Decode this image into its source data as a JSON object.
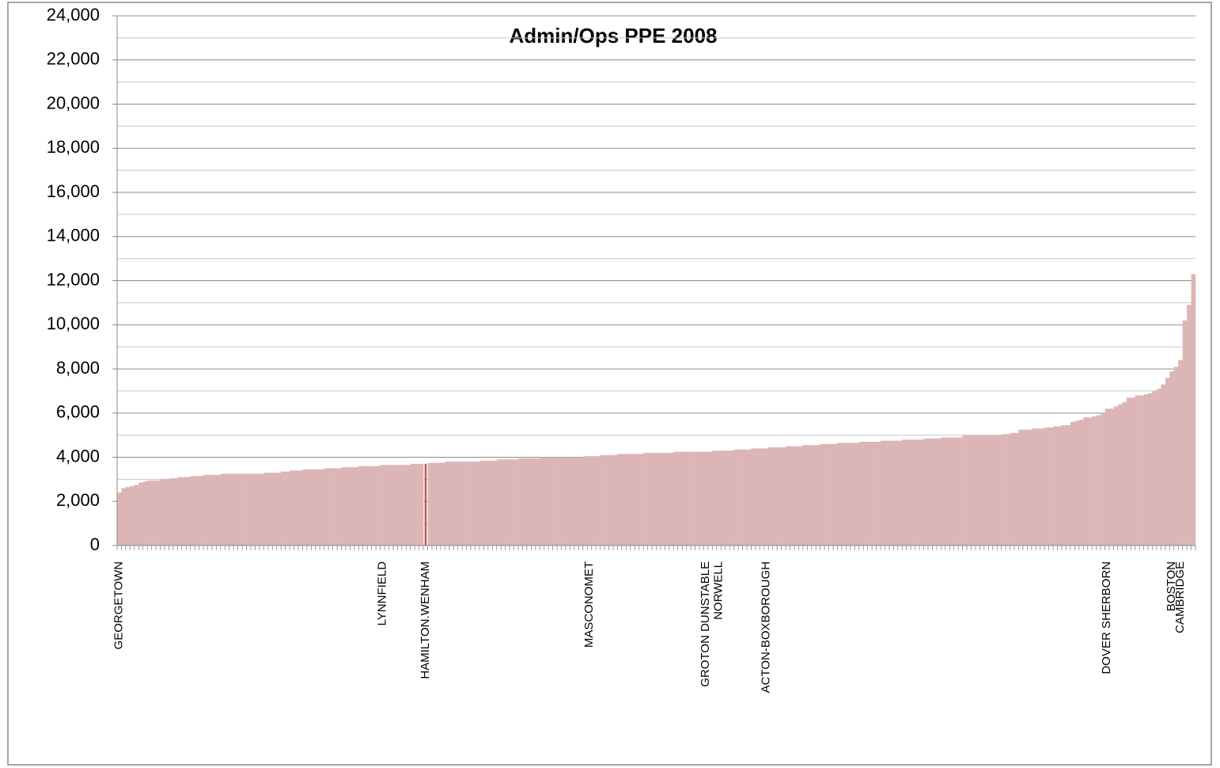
{
  "chart_data": {
    "type": "bar",
    "title": "Admin/Ops PPE 2008",
    "categories": [
      "GEORGETOWN",
      null,
      null,
      null,
      null,
      null,
      null,
      null,
      null,
      null,
      null,
      null,
      null,
      null,
      null,
      null,
      null,
      null,
      null,
      null,
      null,
      null,
      null,
      null,
      null,
      null,
      null,
      null,
      null,
      null,
      null,
      null,
      null,
      null,
      null,
      null,
      null,
      null,
      null,
      null,
      null,
      null,
      null,
      null,
      null,
      null,
      null,
      null,
      null,
      null,
      null,
      null,
      null,
      null,
      null,
      null,
      null,
      null,
      null,
      null,
      null,
      "LYNNFIELD",
      null,
      null,
      null,
      null,
      null,
      null,
      null,
      null,
      null,
      "HAMILTON.WENHAM",
      null,
      null,
      null,
      null,
      null,
      null,
      null,
      null,
      null,
      null,
      null,
      null,
      null,
      null,
      null,
      null,
      null,
      null,
      null,
      null,
      null,
      null,
      null,
      null,
      null,
      null,
      null,
      null,
      null,
      null,
      null,
      null,
      null,
      null,
      null,
      null,
      null,
      "MASCONOMET",
      null,
      null,
      null,
      null,
      null,
      null,
      null,
      null,
      null,
      null,
      null,
      null,
      null,
      null,
      null,
      null,
      null,
      null,
      null,
      null,
      null,
      null,
      null,
      null,
      null,
      null,
      "GROTON DUNSTABLE",
      null,
      null,
      "NORWELL",
      null,
      null,
      null,
      null,
      null,
      null,
      null,
      null,
      null,
      null,
      "ACTON-BOXBOROUGH",
      null,
      null,
      null,
      null,
      null,
      null,
      null,
      null,
      null,
      null,
      null,
      null,
      null,
      null,
      null,
      null,
      null,
      null,
      null,
      null,
      null,
      null,
      null,
      null,
      null,
      null,
      null,
      null,
      null,
      null,
      null,
      null,
      null,
      null,
      null,
      null,
      null,
      null,
      null,
      null,
      null,
      null,
      null,
      null,
      null,
      null,
      null,
      null,
      null,
      null,
      null,
      null,
      null,
      null,
      null,
      null,
      null,
      null,
      null,
      null,
      null,
      null,
      null,
      null,
      null,
      null,
      null,
      null,
      null,
      null,
      null,
      null,
      null,
      null,
      null,
      null,
      null,
      null,
      "DOVER SHERBORN",
      null,
      null,
      null,
      null,
      null,
      null,
      null,
      null,
      null,
      null,
      null,
      null,
      null,
      null,
      "BOSTON",
      null,
      "CAMBRIDGE",
      null,
      null,
      null
    ],
    "values": [
      2400,
      2600,
      2650,
      2700,
      2750,
      2850,
      2900,
      2950,
      2950,
      2950,
      3000,
      3000,
      3050,
      3050,
      3100,
      3100,
      3100,
      3150,
      3150,
      3150,
      3200,
      3200,
      3200,
      3200,
      3250,
      3250,
      3250,
      3250,
      3250,
      3250,
      3250,
      3250,
      3250,
      3250,
      3300,
      3300,
      3300,
      3300,
      3350,
      3350,
      3400,
      3400,
      3400,
      3450,
      3450,
      3450,
      3450,
      3450,
      3500,
      3500,
      3500,
      3500,
      3550,
      3550,
      3550,
      3550,
      3600,
      3600,
      3600,
      3600,
      3600,
      3650,
      3650,
      3650,
      3650,
      3650,
      3650,
      3650,
      3700,
      3700,
      3700,
      3700,
      3750,
      3750,
      3750,
      3750,
      3800,
      3800,
      3800,
      3800,
      3800,
      3800,
      3800,
      3800,
      3850,
      3850,
      3850,
      3850,
      3900,
      3900,
      3900,
      3900,
      3900,
      3950,
      3950,
      3950,
      3950,
      3950,
      4000,
      4000,
      4000,
      4000,
      4000,
      4000,
      4000,
      4000,
      4000,
      4000,
      4050,
      4050,
      4050,
      4050,
      4100,
      4100,
      4100,
      4100,
      4150,
      4150,
      4150,
      4150,
      4150,
      4150,
      4200,
      4200,
      4200,
      4200,
      4200,
      4200,
      4200,
      4250,
      4250,
      4250,
      4250,
      4250,
      4250,
      4250,
      4250,
      4250,
      4300,
      4300,
      4300,
      4300,
      4300,
      4350,
      4350,
      4350,
      4350,
      4400,
      4400,
      4400,
      4400,
      4450,
      4450,
      4450,
      4450,
      4500,
      4500,
      4500,
      4500,
      4550,
      4550,
      4550,
      4550,
      4600,
      4600,
      4600,
      4600,
      4650,
      4650,
      4650,
      4650,
      4650,
      4700,
      4700,
      4700,
      4700,
      4700,
      4750,
      4750,
      4750,
      4750,
      4750,
      4800,
      4800,
      4800,
      4800,
      4800,
      4850,
      4850,
      4850,
      4850,
      4900,
      4900,
      4900,
      4900,
      4900,
      5000,
      5000,
      5000,
      5000,
      5000,
      5000,
      5000,
      5000,
      5000,
      5050,
      5050,
      5100,
      5100,
      5250,
      5250,
      5250,
      5300,
      5300,
      5300,
      5350,
      5350,
      5400,
      5400,
      5450,
      5450,
      5600,
      5650,
      5700,
      5800,
      5800,
      5850,
      5900,
      6000,
      6200,
      6200,
      6300,
      6400,
      6500,
      6700,
      6700,
      6800,
      6800,
      6850,
      6900,
      7000,
      7100,
      7300,
      7600,
      7900,
      8100,
      8400,
      10200,
      10900,
      12300
    ],
    "color": "#dcb6b6",
    "highlight_index": 71,
    "highlight_color": "#c0504d",
    "ylim": [
      0,
      24000
    ],
    "yticks": [
      {
        "value": 0,
        "label": "0"
      },
      {
        "value": 2000,
        "label": "2,000"
      },
      {
        "value": 4000,
        "label": "4,000"
      },
      {
        "value": 6000,
        "label": "6,000"
      },
      {
        "value": 8000,
        "label": "8,000"
      },
      {
        "value": 10000,
        "label": "10,000"
      },
      {
        "value": 12000,
        "label": "12,000"
      },
      {
        "value": 14000,
        "label": "14,000"
      },
      {
        "value": 16000,
        "label": "16,000"
      },
      {
        "value": 18000,
        "label": "18,000"
      },
      {
        "value": 20000,
        "label": "20,000"
      },
      {
        "value": 22000,
        "label": "22,000"
      },
      {
        "value": 24000,
        "label": "24,000"
      }
    ],
    "minor_yticks": [
      1000,
      3000,
      5000,
      7000,
      9000,
      11000,
      13000,
      15000,
      17000,
      19000,
      21000,
      23000
    ],
    "grid": true
  }
}
